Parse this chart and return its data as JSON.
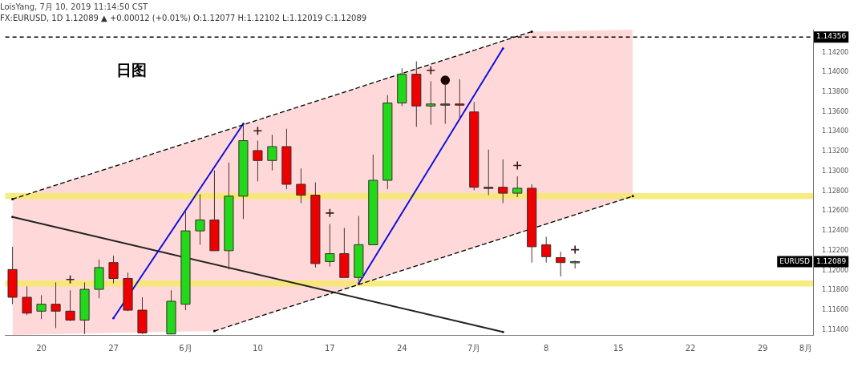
{
  "chart_data": {
    "type": "candlestick",
    "title": "LoisYang, 7月 10, 2019 11:14:50 CST",
    "subtitle": "FX:EURUSD, 1D 1.12089 ▲ +0.00012 (+0.01%) O:1.12077 H:1.12102 L:1.12019 C:1.12089",
    "categories": [
      null,
      null,
      "20",
      null,
      null,
      null,
      null,
      "27",
      null,
      null,
      null,
      null,
      "6月",
      null,
      null,
      null,
      null,
      "10",
      null,
      null,
      null,
      null,
      "17",
      null,
      null,
      null,
      null,
      "24",
      null,
      null,
      null,
      null,
      "7月",
      null,
      null,
      null,
      null,
      "8",
      null,
      null,
      null,
      null,
      "15",
      null,
      null,
      null,
      null,
      "22",
      null,
      null,
      null,
      null,
      "29",
      null,
      null,
      "8月"
    ],
    "ohlc": [
      [
        1.1201,
        1.1224,
        1.1166,
        1.1173
      ],
      [
        1.1173,
        1.1184,
        1.1155,
        1.1157
      ],
      [
        1.1159,
        1.1175,
        1.1151,
        1.1166
      ],
      [
        1.1166,
        1.1188,
        1.1142,
        1.1159
      ],
      [
        1.1159,
        1.118,
        1.1149,
        1.115
      ],
      [
        1.115,
        1.1188,
        1.1136,
        1.1181
      ],
      [
        1.1181,
        1.1211,
        1.1172,
        1.1203
      ],
      [
        1.1208,
        1.1215,
        1.1187,
        1.1192
      ],
      [
        1.1192,
        1.1198,
        1.1159,
        1.116
      ],
      [
        1.116,
        1.1173,
        1.1136,
        1.1137
      ],
      null,
      [
        1.1136,
        1.118,
        1.1136,
        1.1169
      ],
      [
        1.1166,
        1.126,
        1.116,
        1.124
      ],
      [
        1.124,
        1.1277,
        1.1226,
        1.1251
      ],
      [
        1.1251,
        1.1301,
        1.122,
        1.122
      ],
      [
        1.122,
        1.1309,
        1.1201,
        1.1275
      ],
      [
        1.1275,
        1.1347,
        1.1252,
        1.1331
      ],
      [
        1.1321,
        1.1331,
        1.129,
        1.1311
      ],
      [
        1.1311,
        1.1337,
        1.1301,
        1.1325
      ],
      [
        1.1325,
        1.1343,
        1.1282,
        1.1287
      ],
      [
        1.1287,
        1.1303,
        1.1268,
        1.1276
      ],
      [
        1.1276,
        1.1289,
        1.1203,
        1.1207
      ],
      [
        1.1209,
        1.1247,
        1.1204,
        1.1217
      ],
      [
        1.1217,
        1.1243,
        1.1193,
        1.1193
      ],
      [
        1.1193,
        1.1255,
        1.1189,
        1.1226
      ],
      [
        1.1226,
        1.1317,
        1.1226,
        1.1291
      ],
      [
        1.1291,
        1.1377,
        1.1282,
        1.1369
      ],
      [
        1.1369,
        1.1404,
        1.1366,
        1.1398
      ],
      [
        1.1398,
        1.1411,
        1.1345,
        1.1366
      ],
      [
        1.1366,
        1.1391,
        1.1347,
        1.1368
      ],
      [
        1.1368,
        1.1389,
        1.1348,
        1.1368
      ],
      [
        1.1368,
        1.1393,
        1.1353,
        1.1367
      ],
      [
        1.136,
        1.137,
        1.1281,
        1.1284
      ],
      [
        1.1284,
        1.1322,
        1.1276,
        1.1284
      ],
      [
        1.1284,
        1.1312,
        1.1268,
        1.1278
      ],
      [
        1.1278,
        1.1295,
        1.1274,
        1.1283
      ],
      [
        1.1283,
        1.1287,
        1.1208,
        1.1224
      ],
      [
        1.1226,
        1.1234,
        1.1208,
        1.1214
      ],
      [
        1.1213,
        1.1219,
        1.1194,
        1.1208
      ],
      [
        1.1208,
        1.121,
        1.1202,
        1.1209
      ],
      null,
      null,
      null,
      null,
      null,
      null,
      null,
      null,
      null,
      null,
      null,
      null,
      null,
      null,
      null,
      null
    ],
    "colors": [
      "#ee0000",
      "#ee0000",
      "#22d81a",
      "#ee0000",
      "#ee0000",
      "#22d81a",
      "#22d81a",
      "#ee0000",
      "#ee0000",
      "#ee0000",
      null,
      "#22d81a",
      "#22d81a",
      "#22d81a",
      "#ee0000",
      "#22d81a",
      "#22d81a",
      "#ee0000",
      "#22d81a",
      "#ee0000",
      "#ee0000",
      "#ee0000",
      "#22d81a",
      "#ee0000",
      "#22d81a",
      "#22d81a",
      "#22d81a",
      "#22d81a",
      "#ee0000",
      "#22d81a",
      "#555555",
      "#ee0000",
      "#ee0000",
      "#555555",
      "#ee0000",
      "#22d81a",
      "#ee0000",
      "#ee0000",
      "#ee0000",
      "#22d81a",
      null,
      null,
      null,
      null,
      null,
      null,
      null,
      null,
      null,
      null,
      null,
      null,
      null,
      null,
      null,
      null
    ],
    "series": [
      {
        "type": "line",
        "color": "#000000",
        "line_style": "dashed",
        "values": [
          1.1272,
          null,
          null,
          null,
          null,
          null,
          null,
          null,
          null,
          null,
          null,
          null,
          null,
          null,
          null,
          null,
          null,
          null,
          null,
          null,
          null,
          null,
          null,
          null,
          null,
          null,
          null,
          null,
          null,
          null,
          null,
          null,
          null,
          null,
          null,
          null,
          1.1441,
          null,
          null,
          null,
          null,
          null,
          null,
          null,
          null,
          null,
          null,
          null,
          null,
          null,
          null,
          null,
          null,
          null,
          null,
          null
        ],
        "upper": [
          1.1272,
          null,
          null,
          null,
          null,
          null,
          null,
          null,
          null,
          null,
          null,
          null,
          null,
          null,
          1.1337,
          null,
          null,
          null,
          null,
          null,
          null,
          null,
          null,
          null,
          null,
          null,
          null,
          null,
          null,
          null,
          null,
          null,
          null,
          null,
          null,
          null,
          1.1441,
          null,
          null,
          null,
          null,
          null,
          null,
          1.1443,
          null,
          null,
          null,
          null,
          null,
          null,
          null,
          null,
          null,
          null,
          null,
          null
        ],
        "lower": [
          1.1135,
          null,
          null,
          null,
          null,
          null,
          null,
          null,
          null,
          null,
          null,
          null,
          null,
          null,
          1.1139,
          null,
          null,
          null,
          null,
          null,
          null,
          null,
          null,
          null,
          null,
          null,
          null,
          null,
          null,
          null,
          null,
          null,
          null,
          null,
          null,
          null,
          1.1242,
          null,
          null,
          null,
          null,
          null,
          null,
          1.1275,
          null,
          null,
          null,
          null,
          null,
          null,
          null,
          null,
          null,
          null,
          null,
          null
        ]
      },
      {
        "type": "line",
        "color": "#000000",
        "line_style": "dashed",
        "values": [
          null,
          null,
          null,
          null,
          null,
          null,
          null,
          null,
          null,
          null,
          null,
          null,
          null,
          null,
          1.1139,
          null,
          null,
          null,
          null,
          null,
          null,
          null,
          null,
          null,
          null,
          null,
          null,
          null,
          null,
          null,
          null,
          null,
          null,
          null,
          null,
          null,
          null,
          null,
          null,
          null,
          null,
          null,
          null,
          1.1275,
          null,
          null,
          null,
          null,
          null,
          null,
          null,
          null,
          null,
          null,
          null,
          null
        ]
      },
      {
        "type": "line",
        "color": "#1010e0",
        "line_style": "solid",
        "values": [
          null,
          null,
          null,
          null,
          null,
          null,
          null,
          1.1152,
          null,
          null,
          null,
          null,
          null,
          null,
          null,
          null,
          1.1348,
          null,
          null,
          null,
          null,
          null,
          null,
          null,
          null,
          null,
          null,
          null,
          null,
          null,
          null,
          null,
          null,
          null,
          null,
          null,
          null,
          null,
          null,
          null,
          null,
          null,
          null,
          null,
          null,
          null,
          null,
          null,
          null,
          null,
          null,
          null,
          null,
          null,
          null,
          null
        ]
      },
      {
        "type": "line",
        "color": "#1010e0",
        "line_style": "solid",
        "values": [
          null,
          null,
          null,
          null,
          null,
          null,
          null,
          null,
          null,
          null,
          null,
          null,
          null,
          null,
          null,
          null,
          null,
          null,
          null,
          null,
          null,
          null,
          null,
          null,
          1.1187,
          null,
          null,
          null,
          null,
          null,
          null,
          null,
          null,
          null,
          1.1424,
          null,
          null,
          null,
          null,
          null,
          null,
          null,
          null,
          null,
          null,
          null,
          null,
          null,
          null,
          null,
          null,
          null,
          null,
          null,
          null,
          null
        ]
      },
      {
        "type": "line",
        "color": "#222222",
        "line_style": "solid",
        "values": [
          1.1254,
          null,
          null,
          null,
          null,
          null,
          null,
          null,
          null,
          null,
          null,
          null,
          null,
          null,
          null,
          null,
          null,
          null,
          null,
          null,
          null,
          null,
          null,
          null,
          null,
          null,
          null,
          null,
          null,
          null,
          null,
          null,
          null,
          null,
          1.1138,
          null,
          null,
          null,
          null,
          null,
          null,
          null,
          null,
          null,
          null,
          null,
          null,
          null,
          null,
          null,
          null,
          null,
          null,
          null,
          null,
          null
        ]
      },
      {
        "type": "scatter",
        "color": "#3a1a1a",
        "marker": "cross",
        "values": [
          null,
          null,
          null,
          null,
          1.1191,
          null,
          null,
          null,
          null,
          null,
          null,
          null,
          null,
          null,
          null,
          null,
          null,
          1.1341,
          null,
          null,
          null,
          null,
          1.1258,
          null,
          null,
          null,
          null,
          null,
          null,
          1.1402,
          null,
          null,
          null,
          null,
          null,
          1.1306,
          null,
          null,
          null,
          1.1221,
          null,
          null,
          null,
          null,
          null,
          null,
          null,
          null,
          null,
          null,
          null,
          null,
          null,
          null,
          null,
          null
        ]
      },
      {
        "type": "scatter",
        "color": "#1a0505",
        "marker": "circle",
        "values": [
          null,
          null,
          null,
          null,
          null,
          null,
          null,
          null,
          null,
          null,
          null,
          null,
          null,
          null,
          null,
          null,
          null,
          null,
          null,
          null,
          null,
          null,
          null,
          null,
          null,
          null,
          null,
          null,
          null,
          null,
          1.1392,
          null,
          null,
          null,
          null,
          null,
          null,
          null,
          null,
          null,
          null,
          null,
          null,
          null,
          null,
          null,
          null,
          null,
          null,
          null,
          null,
          null,
          null,
          null,
          null,
          null
        ]
      }
    ],
    "ylim": [
      1.1135,
      1.1443
    ],
    "yticks": [
      {
        "value": 1.114,
        "label": "1.11400"
      },
      {
        "value": 1.116,
        "label": "1.11600"
      },
      {
        "value": 1.118,
        "label": "1.11800"
      },
      {
        "value": 1.12,
        "label": "1.12000"
      },
      {
        "value": 1.122,
        "label": "1.12200"
      },
      {
        "value": 1.124,
        "label": "1.12400"
      },
      {
        "value": 1.126,
        "label": "1.12600"
      },
      {
        "value": 1.128,
        "label": "1.12800"
      },
      {
        "value": 1.13,
        "label": "1.13000"
      },
      {
        "value": 1.132,
        "label": "1.13200"
      },
      {
        "value": 1.134,
        "label": "1.13400"
      },
      {
        "value": 1.136,
        "label": "1.13600"
      },
      {
        "value": 1.138,
        "label": "1.13800"
      },
      {
        "value": 1.14,
        "label": "1.14000"
      },
      {
        "value": 1.142,
        "label": "1.14200"
      }
    ],
    "bands": [
      {
        "axis": "y",
        "from": 1.1272,
        "to": 1.1278,
        "color": "#f6e96a"
      },
      {
        "axis": "y",
        "from": 1.1184,
        "to": 1.119,
        "color": "#f6e96a"
      }
    ],
    "ref_lines": [
      {
        "axis": "y",
        "value": 1.14356,
        "label": "1.14356",
        "line_style": "dashed",
        "color": "#000000"
      }
    ],
    "annotations": [
      "日图",
      {
        "text": "EURUSD",
        "y": 1.12089
      },
      {
        "text": "1.12089",
        "y": 1.12089
      }
    ],
    "grid": false,
    "legend": false
  }
}
